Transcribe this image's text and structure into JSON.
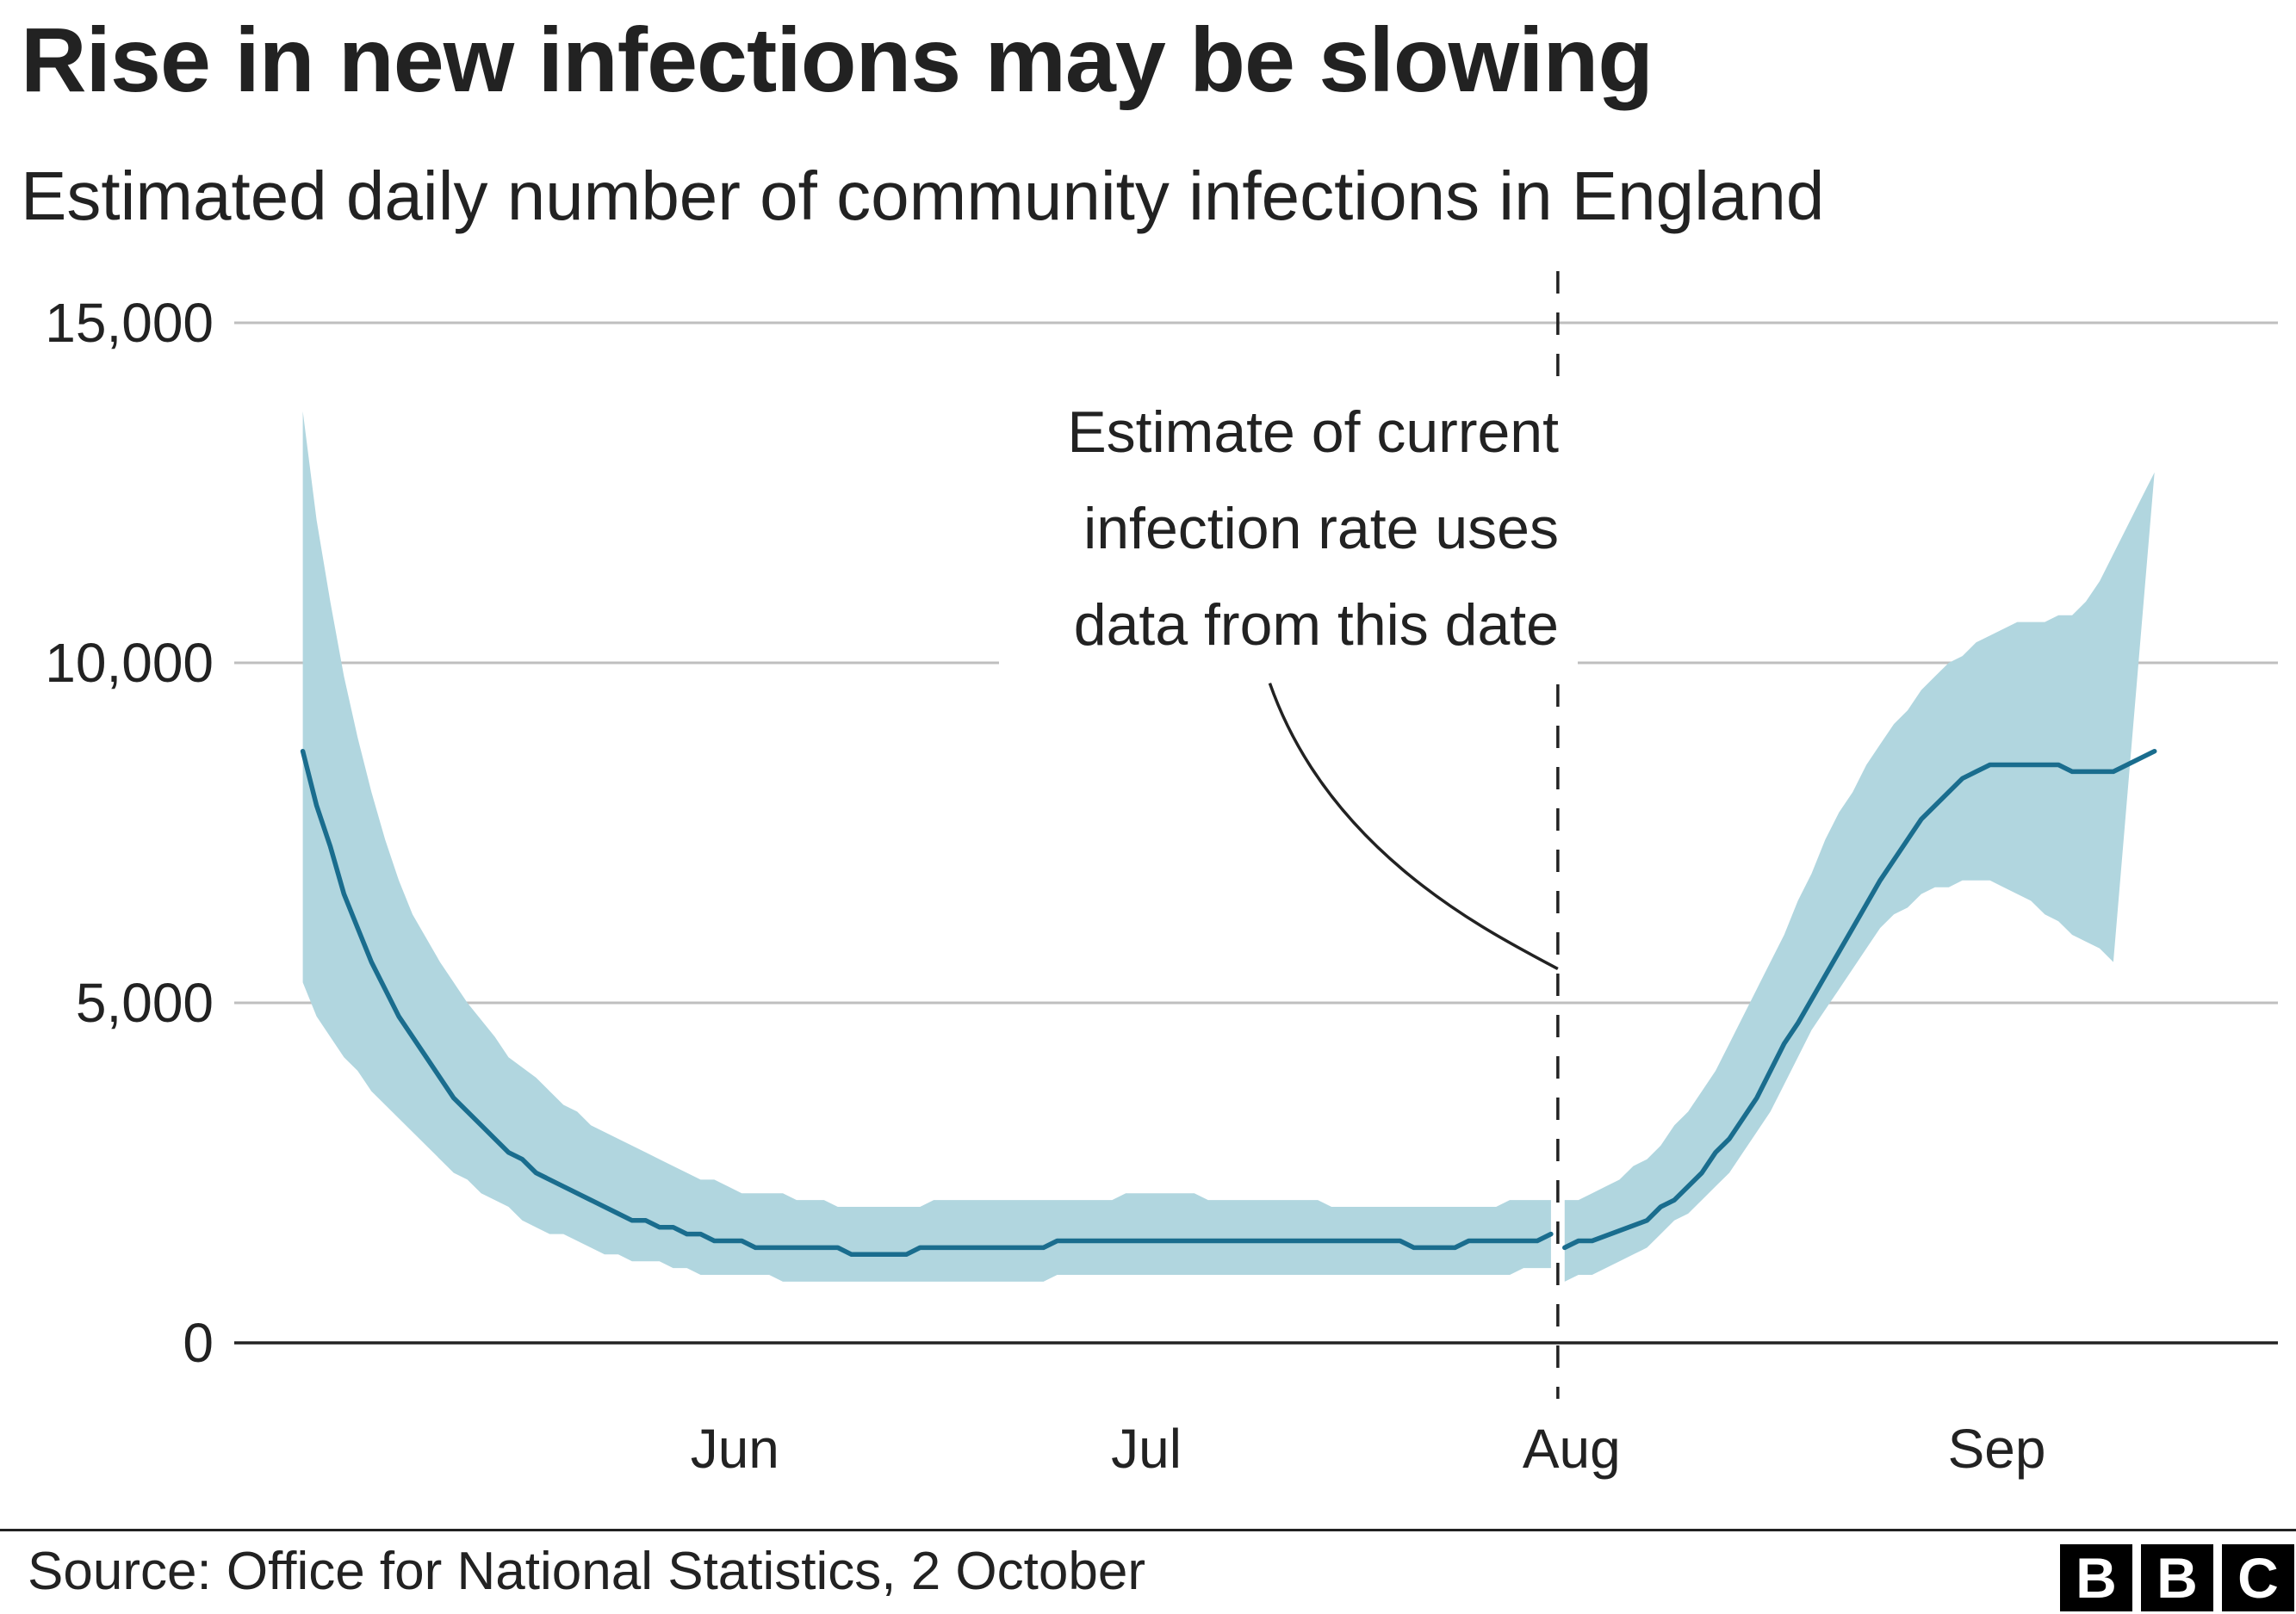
{
  "title": "Rise in new infections may be slowing",
  "subtitle": "Estimated daily number of community infections in England",
  "source": "Source: Office for National Statistics, 2 October",
  "logo": [
    "B",
    "B",
    "C"
  ],
  "colors": {
    "line": "#1a6d8e",
    "band": "#b1d6df",
    "text": "#222222",
    "grid": "#bfbfbf",
    "axis": "#222222"
  },
  "chart_data": {
    "type": "line",
    "x_ticks": [
      {
        "label": "Jun",
        "x": 31.5
      },
      {
        "label": "Jul",
        "x": 61.5
      },
      {
        "label": "Aug",
        "x": 92.5
      },
      {
        "label": "Sep",
        "x": 123.5
      }
    ],
    "y_ticks": [
      0,
      5000,
      10000,
      15000
    ],
    "y_tick_labels": [
      "0",
      "5,000",
      "10,000",
      "15,000"
    ],
    "ylim": [
      0,
      15000
    ],
    "xlim": [
      -5,
      144
    ],
    "grid": true,
    "series": [
      {
        "segment": "before",
        "estimate": [
          [
            0,
            8700
          ],
          [
            1,
            7900
          ],
          [
            2,
            7300
          ],
          [
            3,
            6600
          ],
          [
            4,
            6100
          ],
          [
            5,
            5600
          ],
          [
            6,
            5200
          ],
          [
            7,
            4800
          ],
          [
            9,
            4200
          ],
          [
            11,
            3600
          ],
          [
            13,
            3200
          ],
          [
            15,
            2800
          ],
          [
            16,
            2700
          ],
          [
            17,
            2500
          ],
          [
            19,
            2300
          ],
          [
            21,
            2100
          ],
          [
            23,
            1900
          ],
          [
            24,
            1800
          ],
          [
            25,
            1800
          ],
          [
            26,
            1700
          ],
          [
            27,
            1700
          ],
          [
            28,
            1600
          ],
          [
            29,
            1600
          ],
          [
            30,
            1500
          ],
          [
            32,
            1500
          ],
          [
            33,
            1400
          ],
          [
            39,
            1400
          ],
          [
            40,
            1300
          ],
          [
            44,
            1300
          ],
          [
            45,
            1400
          ],
          [
            54,
            1400
          ],
          [
            55,
            1500
          ],
          [
            80,
            1500
          ],
          [
            81,
            1400
          ],
          [
            84,
            1400
          ],
          [
            85,
            1500
          ],
          [
            90,
            1500
          ],
          [
            91,
            1600
          ]
        ],
        "upper": [
          [
            0,
            13700
          ],
          [
            1,
            12100
          ],
          [
            2,
            10900
          ],
          [
            3,
            9800
          ],
          [
            4,
            8900
          ],
          [
            5,
            8100
          ],
          [
            6,
            7400
          ],
          [
            7,
            6800
          ],
          [
            8,
            6300
          ],
          [
            10,
            5600
          ],
          [
            11,
            5300
          ],
          [
            12,
            5000
          ],
          [
            14,
            4500
          ],
          [
            15,
            4200
          ],
          [
            17,
            3900
          ],
          [
            18,
            3700
          ],
          [
            19,
            3500
          ],
          [
            20,
            3400
          ],
          [
            21,
            3200
          ],
          [
            22,
            3100
          ],
          [
            23,
            3000
          ],
          [
            25,
            2800
          ],
          [
            26,
            2700
          ],
          [
            27,
            2600
          ],
          [
            28,
            2500
          ],
          [
            29,
            2400
          ],
          [
            30,
            2400
          ],
          [
            31,
            2300
          ],
          [
            32,
            2200
          ],
          [
            35,
            2200
          ],
          [
            36,
            2100
          ],
          [
            38,
            2100
          ],
          [
            39,
            2000
          ],
          [
            45,
            2000
          ],
          [
            46,
            2100
          ],
          [
            59,
            2100
          ],
          [
            60,
            2200
          ],
          [
            65,
            2200
          ],
          [
            66,
            2100
          ],
          [
            74,
            2100
          ],
          [
            75,
            2000
          ],
          [
            87,
            2000
          ],
          [
            88,
            2100
          ],
          [
            91,
            2100
          ]
        ],
        "lower": [
          [
            0,
            5300
          ],
          [
            1,
            4800
          ],
          [
            2,
            4500
          ],
          [
            3,
            4200
          ],
          [
            4,
            4000
          ],
          [
            5,
            3700
          ],
          [
            7,
            3300
          ],
          [
            9,
            2900
          ],
          [
            10,
            2700
          ],
          [
            11,
            2500
          ],
          [
            12,
            2400
          ],
          [
            13,
            2200
          ],
          [
            14,
            2100
          ],
          [
            15,
            2000
          ],
          [
            16,
            1800
          ],
          [
            17,
            1700
          ],
          [
            18,
            1600
          ],
          [
            19,
            1600
          ],
          [
            21,
            1400
          ],
          [
            22,
            1300
          ],
          [
            23,
            1300
          ],
          [
            24,
            1200
          ],
          [
            26,
            1200
          ],
          [
            27,
            1100
          ],
          [
            28,
            1100
          ],
          [
            29,
            1000
          ],
          [
            34,
            1000
          ],
          [
            35,
            900
          ],
          [
            54,
            900
          ],
          [
            55,
            1000
          ],
          [
            88,
            1000
          ],
          [
            89,
            1100
          ],
          [
            91,
            1100
          ]
        ]
      },
      {
        "segment": "after",
        "estimate": [
          [
            92,
            1400
          ],
          [
            93,
            1500
          ],
          [
            94,
            1500
          ],
          [
            98,
            1800
          ],
          [
            99,
            2000
          ],
          [
            100,
            2100
          ],
          [
            102,
            2500
          ],
          [
            103,
            2800
          ],
          [
            104,
            3000
          ],
          [
            106,
            3600
          ],
          [
            108,
            4400
          ],
          [
            109,
            4700
          ],
          [
            111,
            5400
          ],
          [
            113,
            6100
          ],
          [
            115,
            6800
          ],
          [
            117,
            7400
          ],
          [
            118,
            7700
          ],
          [
            119,
            7900
          ],
          [
            120,
            8100
          ],
          [
            121,
            8300
          ],
          [
            122,
            8400
          ],
          [
            123,
            8500
          ],
          [
            128,
            8500
          ],
          [
            129,
            8400
          ],
          [
            132,
            8400
          ],
          [
            135,
            8700
          ]
        ],
        "upper": [
          [
            92,
            2100
          ],
          [
            93,
            2100
          ],
          [
            94,
            2200
          ],
          [
            95,
            2300
          ],
          [
            96,
            2400
          ],
          [
            97,
            2600
          ],
          [
            98,
            2700
          ],
          [
            99,
            2900
          ],
          [
            100,
            3200
          ],
          [
            101,
            3400
          ],
          [
            102,
            3700
          ],
          [
            103,
            4000
          ],
          [
            104,
            4400
          ],
          [
            105,
            4800
          ],
          [
            106,
            5200
          ],
          [
            107,
            5600
          ],
          [
            108,
            6000
          ],
          [
            109,
            6500
          ],
          [
            110,
            6900
          ],
          [
            111,
            7400
          ],
          [
            112,
            7800
          ],
          [
            113,
            8100
          ],
          [
            114,
            8500
          ],
          [
            115,
            8800
          ],
          [
            116,
            9100
          ],
          [
            117,
            9300
          ],
          [
            118,
            9600
          ],
          [
            119,
            9800
          ],
          [
            120,
            10000
          ],
          [
            121,
            10100
          ],
          [
            122,
            10300
          ],
          [
            123,
            10400
          ],
          [
            124,
            10500
          ],
          [
            125,
            10600
          ],
          [
            127,
            10600
          ],
          [
            128,
            10700
          ],
          [
            129,
            10700
          ],
          [
            130,
            10900
          ],
          [
            131,
            11200
          ],
          [
            132,
            11600
          ],
          [
            133,
            12000
          ],
          [
            134,
            12400
          ],
          [
            135,
            12800
          ]
        ],
        "lower": [
          [
            92,
            900
          ],
          [
            93,
            1000
          ],
          [
            94,
            1000
          ],
          [
            95,
            1100
          ],
          [
            96,
            1200
          ],
          [
            97,
            1300
          ],
          [
            98,
            1400
          ],
          [
            99,
            1600
          ],
          [
            100,
            1800
          ],
          [
            101,
            1900
          ],
          [
            102,
            2100
          ],
          [
            103,
            2300
          ],
          [
            104,
            2500
          ],
          [
            105,
            2800
          ],
          [
            106,
            3100
          ],
          [
            107,
            3400
          ],
          [
            108,
            3800
          ],
          [
            109,
            4200
          ],
          [
            110,
            4600
          ],
          [
            111,
            4900
          ],
          [
            112,
            5200
          ],
          [
            113,
            5500
          ],
          [
            114,
            5800
          ],
          [
            115,
            6100
          ],
          [
            116,
            6300
          ],
          [
            117,
            6400
          ],
          [
            118,
            6600
          ],
          [
            119,
            6700
          ],
          [
            120,
            6700
          ],
          [
            121,
            6800
          ],
          [
            123,
            6800
          ],
          [
            124,
            6700
          ],
          [
            125,
            6600
          ],
          [
            126,
            6500
          ],
          [
            127,
            6300
          ],
          [
            128,
            6200
          ],
          [
            129,
            6000
          ],
          [
            130,
            5900
          ],
          [
            131,
            5800
          ],
          [
            132,
            5600
          ]
        ]
      }
    ],
    "cutoff_x": 91.5,
    "annotation": {
      "lines": [
        "Estimate of current",
        "infection rate uses",
        "data from this date"
      ],
      "leader_from": [
        70.5,
        9700
      ],
      "leader_to": [
        91.5,
        5500
      ]
    }
  }
}
